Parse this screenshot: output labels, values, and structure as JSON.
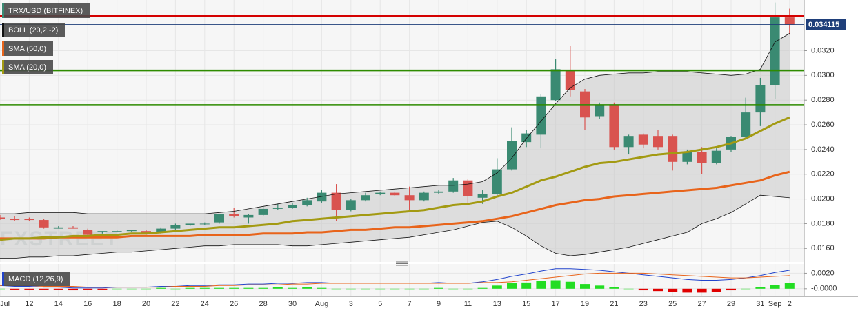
{
  "chart_data": {
    "type": "candlestick",
    "categories": [
      "Jul",
      null,
      "12",
      null,
      "14",
      null,
      "16",
      null,
      "18",
      null,
      "20",
      null,
      "22",
      null,
      "24",
      null,
      "26",
      null,
      "28",
      null,
      "30",
      null,
      "Aug",
      null,
      "3",
      null,
      "5",
      null,
      "7",
      null,
      "9",
      null,
      "11",
      null,
      "13",
      null,
      "15",
      null,
      "17",
      null,
      "19",
      null,
      "21",
      null,
      "23",
      null,
      "25",
      null,
      "27",
      null,
      "29",
      null,
      "31",
      "Sep",
      "2"
    ],
    "candles": {
      "name": "TRX/USD (BITFINEX)",
      "up_color": "#3a8a72",
      "down_color": "#d9534f",
      "open": [
        0.0185,
        0.0184,
        0.0184,
        0.0183,
        0.0176,
        0.0177,
        0.0175,
        0.0173,
        0.0174,
        0.0174,
        0.0174,
        0.0173,
        0.0176,
        0.0179,
        0.018,
        0.0181,
        0.0188,
        0.0185,
        0.0187,
        0.0192,
        0.0193,
        0.0195,
        0.0198,
        0.0205,
        0.0191,
        0.0199,
        0.0204,
        0.0205,
        0.0203,
        0.0199,
        0.0205,
        0.0206,
        0.0215,
        0.0201,
        0.0204,
        0.0224,
        0.0246,
        0.0252,
        0.028,
        0.0304,
        0.0287,
        0.0267,
        0.0276,
        0.0242,
        0.0252,
        0.0251,
        0.0251,
        0.023,
        0.0238,
        0.0229,
        0.024,
        0.025,
        0.027,
        0.0292,
        0.0347
      ],
      "high": [
        0.0187,
        0.0186,
        0.0185,
        0.0184,
        0.0178,
        0.0178,
        0.0176,
        0.0174,
        0.0175,
        0.0175,
        0.0175,
        0.0177,
        0.018,
        0.018,
        0.0181,
        0.0188,
        0.0193,
        0.0188,
        0.0194,
        0.0196,
        0.0197,
        0.0201,
        0.0207,
        0.0212,
        0.02,
        0.0205,
        0.0206,
        0.0206,
        0.021,
        0.0206,
        0.0207,
        0.0217,
        0.0216,
        0.0207,
        0.0233,
        0.0258,
        0.0256,
        0.0285,
        0.0313,
        0.0324,
        0.0289,
        0.0278,
        0.0278,
        0.0252,
        0.0253,
        0.0256,
        0.0252,
        0.024,
        0.0242,
        0.0241,
        0.0251,
        0.0282,
        0.0298,
        0.0359,
        0.0354
      ],
      "low": [
        0.0183,
        0.0182,
        0.0182,
        0.0176,
        0.0176,
        0.0176,
        0.017,
        0.0172,
        0.0173,
        0.0173,
        0.0171,
        0.0172,
        0.0175,
        0.0178,
        0.0179,
        0.018,
        0.0185,
        0.018,
        0.0186,
        0.0191,
        0.0192,
        0.0194,
        0.0197,
        0.0182,
        0.019,
        0.0198,
        0.0203,
        0.0202,
        0.0191,
        0.0198,
        0.0204,
        0.0205,
        0.0195,
        0.0196,
        0.0203,
        0.0223,
        0.0242,
        0.0241,
        0.0279,
        0.0283,
        0.0256,
        0.0265,
        0.024,
        0.0236,
        0.0241,
        0.024,
        0.0223,
        0.0228,
        0.022,
        0.0228,
        0.0238,
        0.0248,
        0.0259,
        0.0281,
        0.0333
      ],
      "close": [
        0.0184,
        0.0183,
        0.0183,
        0.0177,
        0.0177,
        0.0176,
        0.0171,
        0.0174,
        0.0174,
        0.0175,
        0.0172,
        0.0176,
        0.0179,
        0.018,
        0.018,
        0.0188,
        0.0186,
        0.0187,
        0.0192,
        0.0193,
        0.0195,
        0.0199,
        0.0205,
        0.0191,
        0.0199,
        0.0203,
        0.0205,
        0.0203,
        0.0199,
        0.0205,
        0.0206,
        0.0215,
        0.0202,
        0.0204,
        0.0224,
        0.0247,
        0.0253,
        0.0283,
        0.0305,
        0.0288,
        0.0266,
        0.0276,
        0.0242,
        0.0251,
        0.0244,
        0.0242,
        0.023,
        0.0238,
        0.0229,
        0.0239,
        0.025,
        0.027,
        0.0292,
        0.0347,
        0.0341
      ]
    },
    "overlays": [
      {
        "name": "BOLL (20,2,-2)",
        "color": "#111111",
        "fill": "#c8c8c8",
        "upper": [
          0.0188,
          0.0188,
          0.0189,
          0.0189,
          0.0189,
          0.0189,
          0.0188,
          0.0188,
          0.0188,
          0.0188,
          0.0188,
          0.0188,
          0.0188,
          0.0188,
          0.0188,
          0.0189,
          0.019,
          0.0192,
          0.0194,
          0.0196,
          0.0198,
          0.02,
          0.0202,
          0.0204,
          0.0205,
          0.0206,
          0.0207,
          0.0208,
          0.0209,
          0.021,
          0.0211,
          0.0211,
          0.0212,
          0.0214,
          0.0221,
          0.0233,
          0.0249,
          0.0263,
          0.0277,
          0.029,
          0.0297,
          0.03,
          0.0301,
          0.0302,
          0.0302,
          0.0303,
          0.0303,
          0.0303,
          0.0302,
          0.0301,
          0.03,
          0.0301,
          0.0305,
          0.0327,
          0.0334
        ],
        "lower": [
          0.0152,
          0.0152,
          0.0153,
          0.0153,
          0.0154,
          0.0154,
          0.0155,
          0.0156,
          0.0157,
          0.0157,
          0.0158,
          0.0159,
          0.016,
          0.0161,
          0.0162,
          0.0162,
          0.0163,
          0.0163,
          0.0163,
          0.0163,
          0.0162,
          0.0162,
          0.0163,
          0.0164,
          0.0165,
          0.0166,
          0.0167,
          0.0168,
          0.0169,
          0.0171,
          0.0173,
          0.0175,
          0.0178,
          0.0181,
          0.0182,
          0.0177,
          0.017,
          0.0162,
          0.0156,
          0.0154,
          0.0155,
          0.0157,
          0.0159,
          0.0161,
          0.0164,
          0.0167,
          0.017,
          0.0173,
          0.018,
          0.0184,
          0.0189,
          0.0196,
          0.0203,
          0.0202,
          0.0201
        ]
      },
      {
        "name": "SMA (50,0)",
        "color": "#e8641b",
        "values": [
          0.0168,
          0.0168,
          0.0168,
          0.0168,
          0.0169,
          0.0169,
          0.0169,
          0.0169,
          0.0169,
          0.017,
          0.017,
          0.017,
          0.017,
          0.017,
          0.0171,
          0.0171,
          0.0171,
          0.0171,
          0.0172,
          0.0172,
          0.0172,
          0.0173,
          0.0173,
          0.0174,
          0.0175,
          0.0175,
          0.0176,
          0.0177,
          0.0177,
          0.0178,
          0.0179,
          0.018,
          0.0181,
          0.0182,
          0.0184,
          0.0186,
          0.0189,
          0.0192,
          0.0195,
          0.0197,
          0.0199,
          0.02,
          0.0202,
          0.0203,
          0.0204,
          0.0205,
          0.0206,
          0.0207,
          0.0208,
          0.0209,
          0.0211,
          0.0213,
          0.0215,
          0.0219,
          0.0222
        ]
      },
      {
        "name": "SMA (20,0)",
        "color": "#a39a12",
        "values": [
          0.0167,
          0.0168,
          0.0168,
          0.0169,
          0.0169,
          0.017,
          0.017,
          0.0171,
          0.0171,
          0.0172,
          0.0172,
          0.0173,
          0.0174,
          0.0175,
          0.0176,
          0.0177,
          0.0177,
          0.0178,
          0.0179,
          0.018,
          0.0182,
          0.0183,
          0.0184,
          0.0185,
          0.0186,
          0.0187,
          0.0188,
          0.0189,
          0.019,
          0.0191,
          0.0193,
          0.0195,
          0.0196,
          0.0198,
          0.0202,
          0.0205,
          0.021,
          0.0215,
          0.0218,
          0.0222,
          0.0226,
          0.0229,
          0.023,
          0.0232,
          0.0234,
          0.0236,
          0.0237,
          0.0238,
          0.024,
          0.0242,
          0.0245,
          0.0249,
          0.0255,
          0.0261,
          0.0266
        ]
      }
    ],
    "levels": [
      {
        "value": 0.0348,
        "color": "#d40000"
      },
      {
        "value": 0.0304,
        "color": "#2e8b00"
      },
      {
        "value": 0.0276,
        "color": "#2e8b00"
      }
    ],
    "last_price": {
      "value": 0.034115,
      "color": "#1f3f7a"
    },
    "ylim": [
      0.0149,
      0.0361
    ],
    "yticks": [
      {
        "value": 0.016,
        "label": "0.0160"
      },
      {
        "value": 0.018,
        "label": "0.0180"
      },
      {
        "value": 0.02,
        "label": "0.0200"
      },
      {
        "value": 0.022,
        "label": "0.0220"
      },
      {
        "value": 0.024,
        "label": "0.0240"
      },
      {
        "value": 0.026,
        "label": "0.0260"
      },
      {
        "value": 0.028,
        "label": "0.0280"
      },
      {
        "value": 0.03,
        "label": "0.0300"
      },
      {
        "value": 0.032,
        "label": "0.0320"
      }
    ],
    "grid": true,
    "watermark": "FXSTREET",
    "macd": {
      "type": "macd",
      "name": "MACD (12,26,9)",
      "macd_color": "#2244cc",
      "signal_color": "#e8641b",
      "up_color": "#22dd22",
      "down_color": "#e00000",
      "macd": [
        0.0004,
        0.0003,
        0.0003,
        0.0002,
        0.0002,
        0.0001,
        0.0001,
        0.0001,
        0.0002,
        0.0002,
        0.0002,
        0.0003,
        0.0003,
        0.0004,
        0.0004,
        0.0005,
        0.0005,
        0.0006,
        0.0006,
        0.0007,
        0.0007,
        0.0008,
        0.0008,
        0.0007,
        0.0007,
        0.0007,
        0.0007,
        0.0007,
        0.0007,
        0.0007,
        0.0008,
        0.0007,
        0.0007,
        0.0009,
        0.0012,
        0.0016,
        0.0019,
        0.0023,
        0.0026,
        0.0026,
        0.0025,
        0.0024,
        0.0022,
        0.002,
        0.0018,
        0.0016,
        0.0014,
        0.0012,
        0.0011,
        0.0011,
        0.0012,
        0.0014,
        0.0017,
        0.0021,
        0.0024
      ],
      "signal": [
        0.0004,
        0.0004,
        0.0004,
        0.0003,
        0.0003,
        0.0003,
        0.0002,
        0.0002,
        0.0002,
        0.0002,
        0.0002,
        0.0002,
        0.0003,
        0.0003,
        0.0003,
        0.0004,
        0.0004,
        0.0005,
        0.0005,
        0.0005,
        0.0006,
        0.0006,
        0.0007,
        0.0007,
        0.0007,
        0.0007,
        0.0007,
        0.0007,
        0.0007,
        0.0007,
        0.0007,
        0.0007,
        0.0007,
        0.0008,
        0.0008,
        0.0009,
        0.0011,
        0.0013,
        0.0015,
        0.0017,
        0.0019,
        0.002,
        0.002,
        0.002,
        0.002,
        0.0019,
        0.0018,
        0.0017,
        0.0016,
        0.0015,
        0.0014,
        0.0014,
        0.0015,
        0.0016,
        0.0017
      ],
      "histogram": [
        0,
        -0.0001,
        -0.0001,
        -0.0001,
        -0.0001,
        -0.0002,
        -0.0001,
        -0.0001,
        0,
        0,
        0,
        0.0001,
        0,
        0.0001,
        0.0001,
        0.0001,
        0.0001,
        0.0001,
        0.0001,
        0.0002,
        0.0001,
        0.0002,
        0.0001,
        0,
        0,
        0,
        0,
        0,
        0,
        0,
        0.0001,
        0,
        0,
        0.0001,
        0.0004,
        0.0007,
        0.0008,
        0.001,
        0.0011,
        0.0009,
        0.0006,
        0.0004,
        0.0002,
        0,
        -0.0002,
        -0.0003,
        -0.0004,
        -0.0005,
        -0.0005,
        -0.0004,
        -0.0002,
        0,
        0.0002,
        0.0005,
        0.0007
      ],
      "ylim": [
        -0.001,
        0.0032
      ],
      "yticks": [
        {
          "value": 0.002,
          "label": "0.0020"
        },
        {
          "value": 0,
          "label": "-0.0000"
        }
      ]
    }
  }
}
